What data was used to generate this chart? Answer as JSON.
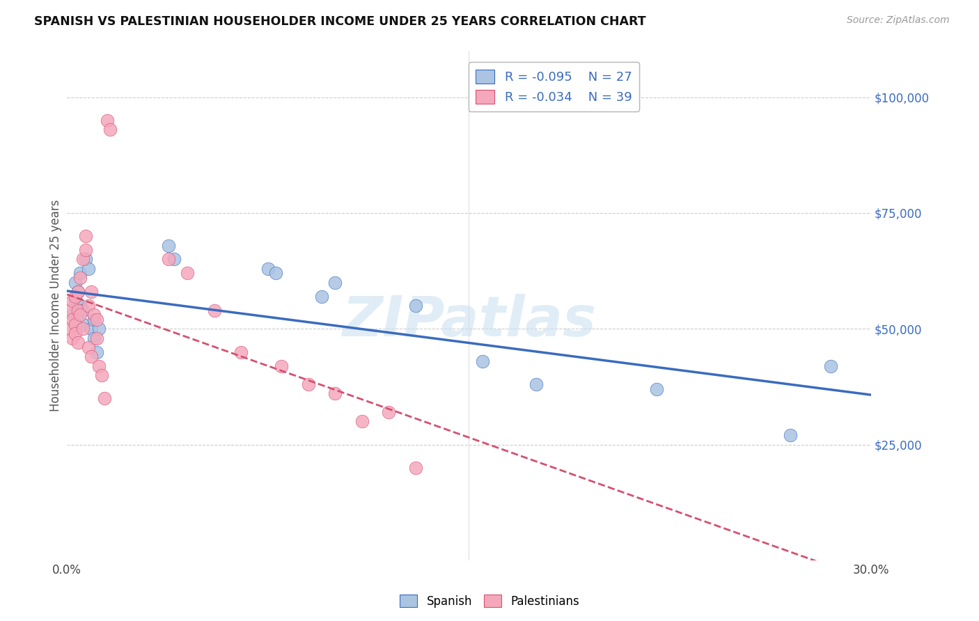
{
  "title": "SPANISH VS PALESTINIAN HOUSEHOLDER INCOME UNDER 25 YEARS CORRELATION CHART",
  "source": "Source: ZipAtlas.com",
  "ylabel": "Householder Income Under 25 years",
  "xlim": [
    0.0,
    0.3
  ],
  "ylim": [
    0,
    110000
  ],
  "yticks": [
    0,
    25000,
    50000,
    75000,
    100000
  ],
  "ytick_labels": [
    "",
    "$25,000",
    "$50,000",
    "$75,000",
    "$100,000"
  ],
  "xticks": [
    0.0,
    0.05,
    0.1,
    0.15,
    0.2,
    0.25,
    0.3
  ],
  "xtick_labels": [
    "0.0%",
    "",
    "",
    "",
    "",
    "",
    "30.0%"
  ],
  "spanish_color": "#aac4e2",
  "palestinian_color": "#f5a8bc",
  "spanish_line_color": "#3a6bbf",
  "palestinian_line_color": "#d45070",
  "background_color": "#ffffff",
  "grid_color": "#cccccc",
  "watermark": "ZIPatlas",
  "legend_R_spanish": "R = -0.095",
  "legend_N_spanish": "N = 27",
  "legend_R_palestinian": "R = -0.034",
  "legend_N_palestinian": "N = 39",
  "spanish_x": [
    0.002,
    0.003,
    0.003,
    0.004,
    0.005,
    0.005,
    0.006,
    0.006,
    0.007,
    0.008,
    0.009,
    0.01,
    0.01,
    0.011,
    0.012,
    0.038,
    0.04,
    0.075,
    0.078,
    0.095,
    0.1,
    0.13,
    0.155,
    0.175,
    0.22,
    0.27,
    0.285
  ],
  "spanish_y": [
    53000,
    56000,
    60000,
    58000,
    55000,
    62000,
    54000,
    51000,
    65000,
    63000,
    50000,
    48000,
    52000,
    45000,
    50000,
    68000,
    65000,
    63000,
    62000,
    57000,
    60000,
    55000,
    43000,
    38000,
    37000,
    27000,
    42000
  ],
  "palestinian_x": [
    0.001,
    0.001,
    0.002,
    0.002,
    0.002,
    0.003,
    0.003,
    0.003,
    0.004,
    0.004,
    0.004,
    0.005,
    0.005,
    0.006,
    0.006,
    0.007,
    0.007,
    0.008,
    0.008,
    0.009,
    0.009,
    0.01,
    0.011,
    0.011,
    0.012,
    0.013,
    0.014,
    0.015,
    0.016,
    0.038,
    0.045,
    0.055,
    0.065,
    0.08,
    0.09,
    0.1,
    0.11,
    0.12,
    0.13
  ],
  "palestinian_y": [
    54000,
    50000,
    56000,
    52000,
    48000,
    57000,
    51000,
    49000,
    58000,
    54000,
    47000,
    61000,
    53000,
    65000,
    50000,
    70000,
    67000,
    55000,
    46000,
    58000,
    44000,
    53000,
    52000,
    48000,
    42000,
    40000,
    35000,
    95000,
    93000,
    65000,
    62000,
    54000,
    45000,
    42000,
    38000,
    36000,
    30000,
    32000,
    20000
  ]
}
